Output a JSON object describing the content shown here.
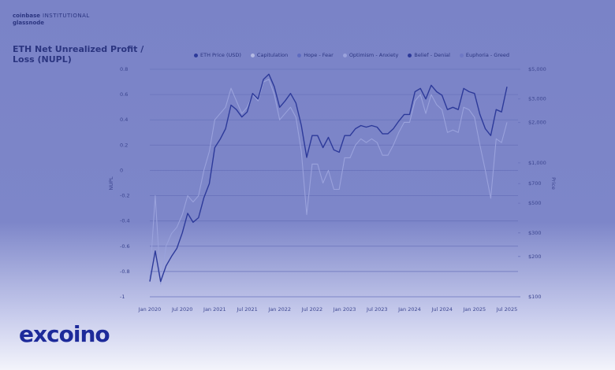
{
  "branding": {
    "source_brand": "coinbase",
    "source_tag": "INSTITUTIONAL",
    "source_partner": "glassnode",
    "watermark": "excoino"
  },
  "chart_data": {
    "type": "line",
    "title": "ETH Net Unrealized Profit / Loss (NUPL)",
    "ylabel": "NUPL",
    "y2label": "Price",
    "x": [
      "2020-01",
      "2020-02",
      "2020-03",
      "2020-04",
      "2020-05",
      "2020-06",
      "2020-07",
      "2020-08",
      "2020-09",
      "2020-10",
      "2020-11",
      "2020-12",
      "2021-01",
      "2021-02",
      "2021-03",
      "2021-04",
      "2021-05",
      "2021-06",
      "2021-07",
      "2021-08",
      "2021-09",
      "2021-10",
      "2021-11",
      "2021-12",
      "2022-01",
      "2022-02",
      "2022-03",
      "2022-04",
      "2022-05",
      "2022-06",
      "2022-07",
      "2022-08",
      "2022-09",
      "2022-10",
      "2022-11",
      "2022-12",
      "2023-01",
      "2023-02",
      "2023-03",
      "2023-04",
      "2023-05",
      "2023-06",
      "2023-07",
      "2023-08",
      "2023-09",
      "2023-10",
      "2023-11",
      "2023-12",
      "2024-01",
      "2024-02",
      "2024-03",
      "2024-04",
      "2024-05",
      "2024-06",
      "2024-07",
      "2024-08",
      "2024-09",
      "2024-10",
      "2024-11",
      "2024-12",
      "2025-01",
      "2025-02",
      "2025-03",
      "2025-04",
      "2025-05",
      "2025-06",
      "2025-07"
    ],
    "series": [
      {
        "color": "#9aa2dc",
        "values": [
          -0.85,
          -0.2,
          -0.9,
          -0.6,
          -0.5,
          -0.45,
          -0.35,
          -0.2,
          -0.25,
          -0.2,
          0,
          0.15,
          0.4,
          0.45,
          0.5,
          0.65,
          0.55,
          0.45,
          0.5,
          0.6,
          0.55,
          0.7,
          0.72,
          0.6,
          0.4,
          0.45,
          0.5,
          0.42,
          0.15,
          -0.35,
          0.05,
          0.05,
          -0.1,
          0,
          -0.15,
          -0.15,
          0.1,
          0.1,
          0.2,
          0.25,
          0.22,
          0.25,
          0.22,
          0.12,
          0.12,
          0.2,
          0.3,
          0.38,
          0.38,
          0.55,
          0.6,
          0.45,
          0.6,
          0.52,
          0.48,
          0.3,
          0.32,
          0.3,
          0.5,
          0.48,
          0.42,
          0.2,
          0,
          -0.22,
          0.25,
          0.22,
          0.38
        ]
      },
      {
        "name": "ETH Price (USD)",
        "color": "#2d3a9a",
        "axis": "y2",
        "values": [
          130,
          220,
          130,
          170,
          200,
          230,
          300,
          420,
          360,
          390,
          550,
          700,
          1300,
          1500,
          1800,
          2700,
          2500,
          2200,
          2400,
          3300,
          3000,
          4200,
          4600,
          3700,
          2600,
          2900,
          3300,
          2800,
          1900,
          1100,
          1600,
          1600,
          1300,
          1550,
          1250,
          1200,
          1600,
          1600,
          1800,
          1900,
          1850,
          1900,
          1850,
          1650,
          1650,
          1800,
          2050,
          2300,
          2300,
          3400,
          3600,
          3000,
          3800,
          3400,
          3200,
          2500,
          2600,
          2500,
          3600,
          3400,
          3300,
          2300,
          1800,
          1600,
          2500,
          2400,
          3700
        ]
      }
    ],
    "legend": [
      {
        "name": "Capitulation",
        "color": "#b4bae4"
      },
      {
        "name": "Hope - Fear",
        "color": "#5e6bc0"
      },
      {
        "name": "Optimism - Anxiety",
        "color": "#9aa2dc"
      },
      {
        "name": "Belief - Denial",
        "color": "#2d3a9a"
      },
      {
        "name": "Euphoria - Greed",
        "color": "#6e78c4"
      }
    ],
    "ylim": [
      -1,
      0.8
    ],
    "yticks": [
      -1.0,
      -0.8,
      -0.6,
      -0.4,
      -0.2,
      0,
      0.2,
      0.4,
      0.6,
      0.8
    ],
    "y2lim": [
      100,
      5000
    ],
    "y2log": true,
    "y2ticks": [
      {
        "value": 100,
        "label": "$100"
      },
      {
        "value": 200,
        "label": "$200"
      },
      {
        "value": 300,
        "label": "$300"
      },
      {
        "value": 500,
        "label": "$500"
      },
      {
        "value": 700,
        "label": "$700"
      },
      {
        "value": 1000,
        "label": "$1,000"
      },
      {
        "value": 2000,
        "label": "$2,000"
      },
      {
        "value": 3000,
        "label": "$3,000"
      },
      {
        "value": 5000,
        "label": "$5,000"
      }
    ],
    "xticks": [
      {
        "value": "2020-01",
        "label": "Jan 2020"
      },
      {
        "value": "2020-07",
        "label": "Jul 2020"
      },
      {
        "value": "2021-01",
        "label": "Jan 2021"
      },
      {
        "value": "2021-07",
        "label": "Jul 2021"
      },
      {
        "value": "2022-01",
        "label": "Jan 2022"
      },
      {
        "value": "2022-07",
        "label": "Jul 2022"
      },
      {
        "value": "2023-01",
        "label": "Jan 2023"
      },
      {
        "value": "2023-07",
        "label": "Jul 2023"
      },
      {
        "value": "2024-01",
        "label": "Jan 2024"
      },
      {
        "value": "2024-07",
        "label": "Jul 2024"
      },
      {
        "value": "2025-01",
        "label": "Jan 2025"
      },
      {
        "value": "2025-07",
        "label": "Jul 2025"
      }
    ],
    "grid": true
  }
}
